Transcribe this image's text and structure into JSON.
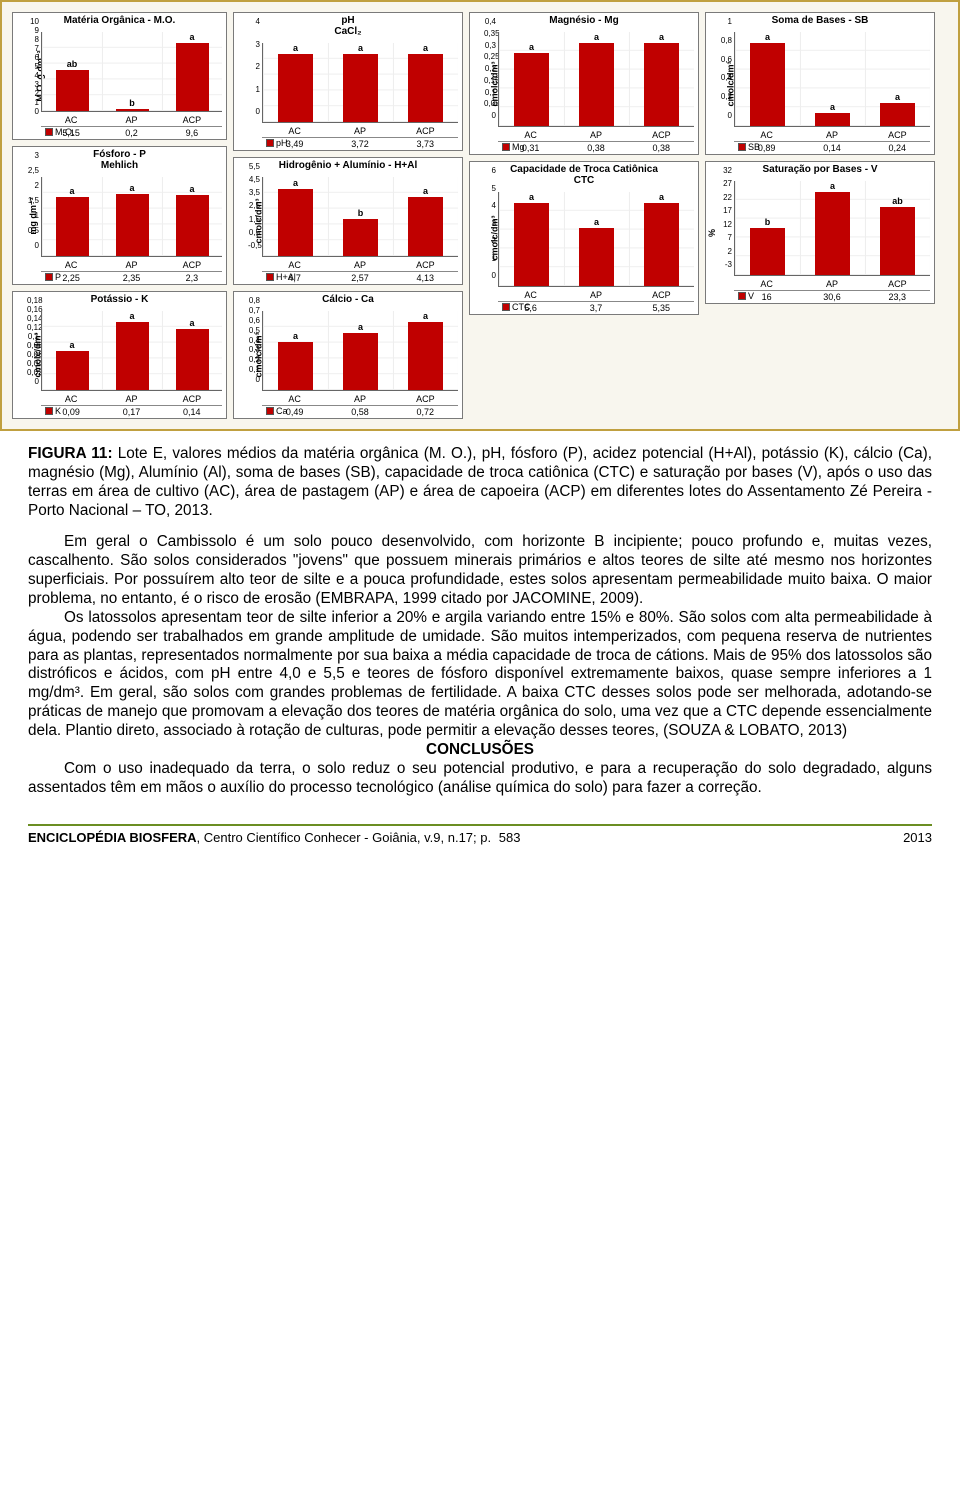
{
  "chart_style": {
    "bar_color": "#c00000",
    "background": "#ffffff",
    "panel_bg": "#f8f6ee",
    "panel_border": "#c0a040",
    "grid": "#eeeeee",
    "axis": "#666666",
    "title_fontsize": 10,
    "tick_fontsize": 8,
    "label_fontsize": 9
  },
  "categories": [
    "AC",
    "AP",
    "ACP"
  ],
  "charts": {
    "mo": {
      "title": "Matéria Orgânica - M.O.",
      "ylabel": "M.O. g dm⁻³",
      "key": "M.O.",
      "ymax": 10,
      "yticks": [
        "10",
        "9",
        "8",
        "7",
        "6",
        "5",
        "4",
        "3",
        "2",
        "1",
        "0"
      ],
      "values": [
        5.15,
        0.2,
        9.6
      ],
      "labels": [
        "ab",
        "b",
        "a"
      ]
    },
    "p": {
      "title": "Fósforo - P\nMehlich",
      "ylabel": "mg dm⁻³",
      "key": "P",
      "ymax": 3,
      "yticks": [
        "3",
        "2,5",
        "2",
        "1,5",
        "1",
        "0,5",
        "0"
      ],
      "values": [
        2.25,
        2.35,
        2.3
      ],
      "labels": [
        "a",
        "a",
        "a"
      ]
    },
    "k": {
      "title": "Potássio - K",
      "ylabel": "cmolc/dm³",
      "key": "K",
      "ymax": 0.18,
      "yticks": [
        "0,18",
        "0,16",
        "0,14",
        "0,12",
        "0,1",
        "0,08",
        "0,06",
        "0,04",
        "0,02",
        "0"
      ],
      "values": [
        0.09,
        0.17,
        0.14
      ],
      "labels": [
        "a",
        "a",
        "a"
      ]
    },
    "ph": {
      "title": "pH\nCaCl₂",
      "ylabel": "",
      "key": "pH",
      "ymax": 4,
      "yticks": [
        "4",
        "3",
        "2",
        "1",
        "0"
      ],
      "values": [
        3.49,
        3.72,
        3.73
      ],
      "labels": [
        "a",
        "a",
        "a"
      ]
    },
    "h_al": {
      "title": "Hidrogênio + Alumínio - H+Al",
      "ylabel": "cmolc/dm³",
      "key": "H+Al",
      "ymax": 5.5,
      "yticks": [
        "5,5",
        "4,5",
        "3,5",
        "2,5",
        "1,5",
        "0,5",
        "-0,5"
      ],
      "values": [
        4.7,
        2.57,
        4.13
      ],
      "labels": [
        "a",
        "b",
        "a"
      ]
    },
    "ca": {
      "title": "Cálcio - Ca",
      "ylabel": "cmolc/dm³",
      "key": "Ca",
      "ymax": 0.8,
      "yticks": [
        "0,8",
        "0,7",
        "0,6",
        "0,5",
        "0,4",
        "0,3",
        "0,2",
        "0,1",
        "0"
      ],
      "values": [
        0.49,
        0.58,
        0.72
      ],
      "labels": [
        "a",
        "a",
        "a"
      ]
    },
    "mg": {
      "title": "Magnésio - Mg",
      "ylabel": "cmolc/dm³",
      "key": "Mg",
      "ymax": 0.4,
      "yticks": [
        "0,4",
        "0,35",
        "0,3",
        "0,25",
        "0,2",
        "0,15",
        "0,1",
        "0,05",
        "0"
      ],
      "values": [
        0.31,
        0.38,
        0.38
      ],
      "labels": [
        "a",
        "a",
        "a"
      ]
    },
    "ctc": {
      "title": "Capacidade de Troca Catiônica\nCTC",
      "ylabel": "cmolc/dm³",
      "key": "CTC",
      "ymax": 6,
      "yticks": [
        "6",
        "5",
        "4",
        "3",
        "2",
        "1",
        "0"
      ],
      "values": [
        5.6,
        3.7,
        5.35
      ],
      "labels": [
        "a",
        "a",
        "a"
      ]
    },
    "sb": {
      "title": "Soma de Bases - SB",
      "ylabel": "cmolc/dm³",
      "key": "SB",
      "ymax": 1,
      "yticks": [
        "1",
        "0,8",
        "0,6",
        "0,4",
        "0,2",
        "0"
      ],
      "values": [
        0.89,
        0.14,
        0.24
      ],
      "labels": [
        "a",
        "a",
        "a"
      ]
    },
    "v": {
      "title": "Saturação por Bases - V",
      "ylabel": "%",
      "key": "V",
      "ymax": 32,
      "yticks": [
        "32",
        "27",
        "22",
        "17",
        "12",
        "7",
        "2",
        "-3"
      ],
      "values": [
        16,
        30.6,
        23.3
      ],
      "labels": [
        "b",
        "a",
        "ab"
      ]
    }
  },
  "caption": {
    "lead": "FIGURA 11:",
    "text": " Lote E, valores médios da matéria orgânica (M. O.), pH, fósforo (P), acidez potencial (H+Al), potássio (K), cálcio (Ca), magnésio (Mg), Alumínio (Al), soma de bases (SB), capacidade de troca catiônica (CTC) e saturação por bases (V), após o uso das terras em área de cultivo (AC), área de pastagem (AP) e área de capoeira (ACP) em diferentes lotes do Assentamento Zé Pereira - Porto Nacional – TO, 2013."
  },
  "para1": "Em geral o Cambissolo é um solo pouco desenvolvido, com horizonte B incipiente; pouco profundo e, muitas vezes, cascalhento. São solos considerados \"jovens\" que possuem minerais primários e altos teores de silte até mesmo nos horizontes superficiais. Por possuírem alto teor de silte e a pouca profundidade, estes solos apresentam permeabilidade muito baixa. O maior problema, no entanto, é o risco de erosão (EMBRAPA, 1999 citado por JACOMINE, 2009).",
  "para2": "Os latossolos apresentam teor de silte inferior a 20% e argila variando entre 15% e 80%. São solos com alta permeabilidade à água, podendo ser trabalhados em grande amplitude de umidade. São muitos intemperizados, com pequena reserva de nutrientes para as plantas, representados normalmente por sua baixa a média capacidade de troca de cátions. Mais de 95% dos latossolos são distróficos e ácidos, com pH entre 4,0 e 5,5 e teores de fósforo disponível extremamente baixos, quase sempre inferiores a 1 mg/dm³. Em geral, são solos com grandes problemas de fertilidade. A baixa CTC desses solos pode ser melhorada, adotando-se práticas de manejo que promovam a elevação dos teores de matéria orgânica do solo, uma vez que a CTC depende essencialmente dela. Plantio direto, associado à rotação de culturas, pode permitir a elevação desses teores, (SOUZA & LOBATO, 2013)",
  "conclusions_title": "CONCLUSÕES",
  "para3": "Com o uso inadequado da terra, o solo reduz o seu potencial produtivo, e para a recuperação do solo degradado, alguns assentados têm em mãos o auxílio do processo tecnológico (análise química do solo) para fazer a correção.",
  "footer": {
    "journal": "ENCICLOPÉDIA BIOSFERA",
    "rest": ", Centro Científico Conhecer - Goiânia, v.9, n.17; p.",
    "page": "583",
    "year": "2013"
  }
}
